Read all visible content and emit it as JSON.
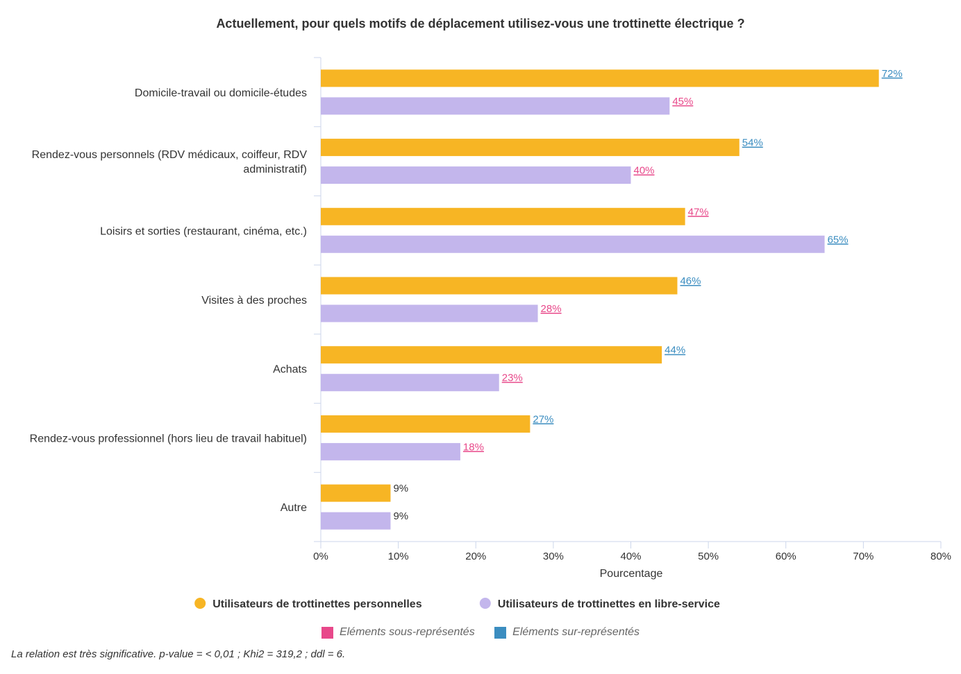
{
  "chart_data": {
    "type": "bar",
    "orientation": "horizontal",
    "title": "Actuellement, pour quels motifs de déplacement utilisez-vous une trottinette électrique ?",
    "xlabel": "Pourcentage",
    "ylabel": "",
    "xlim": [
      0,
      80
    ],
    "x_ticks": [
      "0%",
      "10%",
      "20%",
      "30%",
      "40%",
      "50%",
      "60%",
      "70%",
      "80%"
    ],
    "categories": [
      "Domicile-travail ou domicile-études",
      "Rendez-vous personnels (RDV médicaux, coiffeur, RDV administratif)",
      "Loisirs et sorties (restaurant, cinéma, etc.)",
      "Visites à des proches",
      "Achats",
      "Rendez-vous professionnel (hors lieu de travail habituel)",
      "Autre"
    ],
    "category_label_lines": [
      [
        "Domicile-travail ou domicile-études"
      ],
      [
        "Rendez-vous personnels (RDV médicaux, coiffeur, RDV",
        "administratif)"
      ],
      [
        "Loisirs et sorties (restaurant, cinéma, etc.)"
      ],
      [
        "Visites à des proches"
      ],
      [
        "Achats"
      ],
      [
        "Rendez-vous professionnel (hors lieu de travail habituel)"
      ],
      [
        "Autre"
      ]
    ],
    "series": [
      {
        "name": "Utilisateurs de trottinettes personnelles",
        "color": "#F7B524",
        "values": [
          72,
          54,
          47,
          46,
          44,
          27,
          9
        ],
        "labels": [
          "72%",
          "54%",
          "47%",
          "46%",
          "44%",
          "27%",
          "9%"
        ],
        "label_status": [
          "over",
          "over",
          "under",
          "over",
          "over",
          "over",
          "none"
        ]
      },
      {
        "name": "Utilisateurs de trottinettes en libre-service",
        "color": "#C3B6EC",
        "values": [
          45,
          40,
          65,
          28,
          23,
          18,
          9
        ],
        "labels": [
          "45%",
          "40%",
          "65%",
          "28%",
          "23%",
          "18%",
          "9%"
        ],
        "label_status": [
          "under",
          "under",
          "over",
          "under",
          "under",
          "under",
          "none"
        ]
      }
    ],
    "legend_position": "bottom",
    "grid": false
  },
  "significance_legend": [
    {
      "label": "Eléments sous-représentés",
      "color": "#E8488A"
    },
    {
      "label": "Eléments sur-représentés",
      "color": "#3B8DC0"
    }
  ],
  "label_colors": {
    "over": "#3B8DC0",
    "under": "#E8488A",
    "none": "#333333"
  },
  "note": "La relation est très significative. p-value = < 0,01 ; Khi2 = 319,2 ; ddl = 6."
}
